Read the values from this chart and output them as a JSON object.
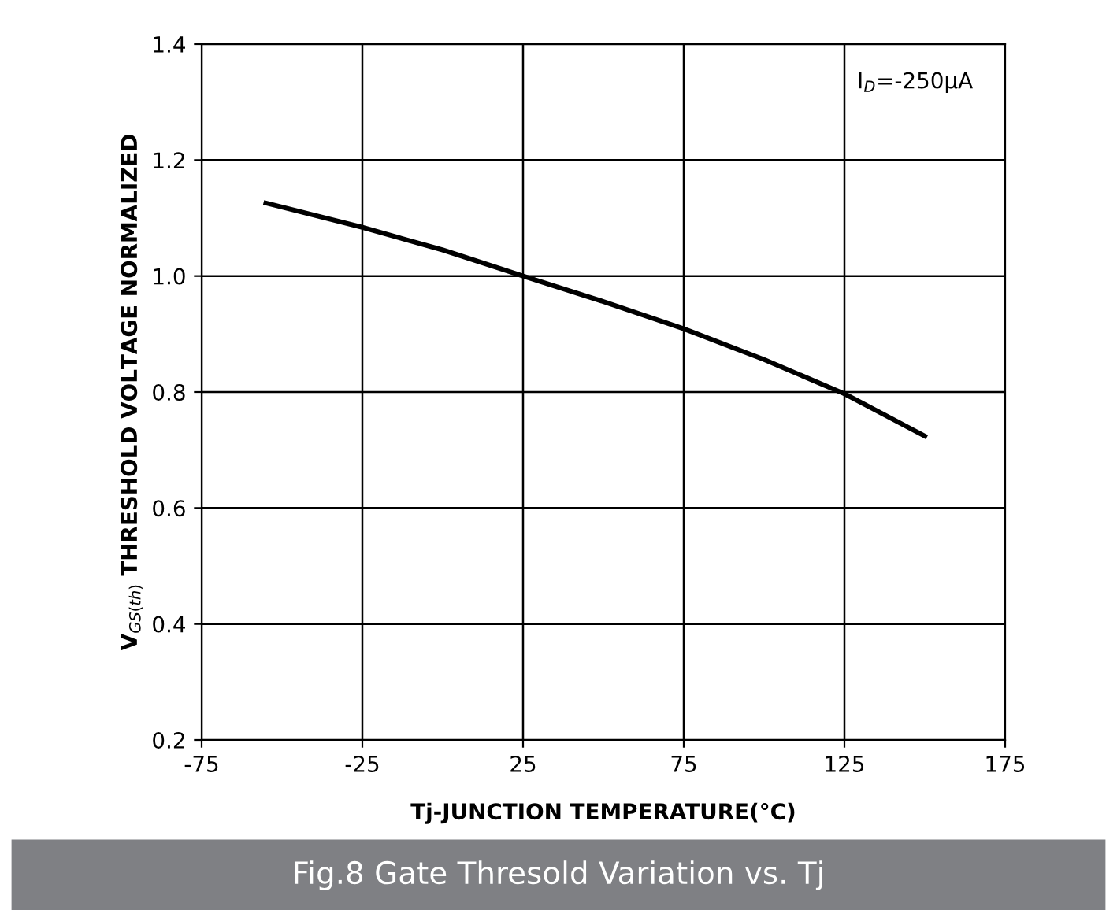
{
  "chart_data": {
    "type": "line",
    "xlabel": "Tj-JUNCTION TEMPERATURE(°C)",
    "ylabel": "V$_{GS(th)}$ THRESHOLD VOLTAGE NORMALIZED",
    "x": [
      -55,
      -25,
      0,
      25,
      50,
      75,
      100,
      125,
      150
    ],
    "series": [
      {
        "color": "#000000",
        "values": [
          1.126,
          1.084,
          1.045,
          1.0,
          0.956,
          0.909,
          0.856,
          0.797,
          0.724
        ]
      }
    ],
    "xlim": [
      -75,
      175
    ],
    "xticks": [
      -75,
      -25,
      25,
      75,
      125,
      175
    ],
    "ylim": [
      0.2,
      1.4
    ],
    "yticks": [
      0.2,
      0.4,
      0.6,
      0.8,
      {
        "value": 1.0,
        "label": "1.0"
      },
      1.2,
      1.4
    ],
    "grid": true,
    "marker": "none",
    "line_style": "solid",
    "annotations": [
      "I$_{D}$=-250μA",
      "Fig.8 Gate Thresold Variation vs. Tj"
    ]
  }
}
